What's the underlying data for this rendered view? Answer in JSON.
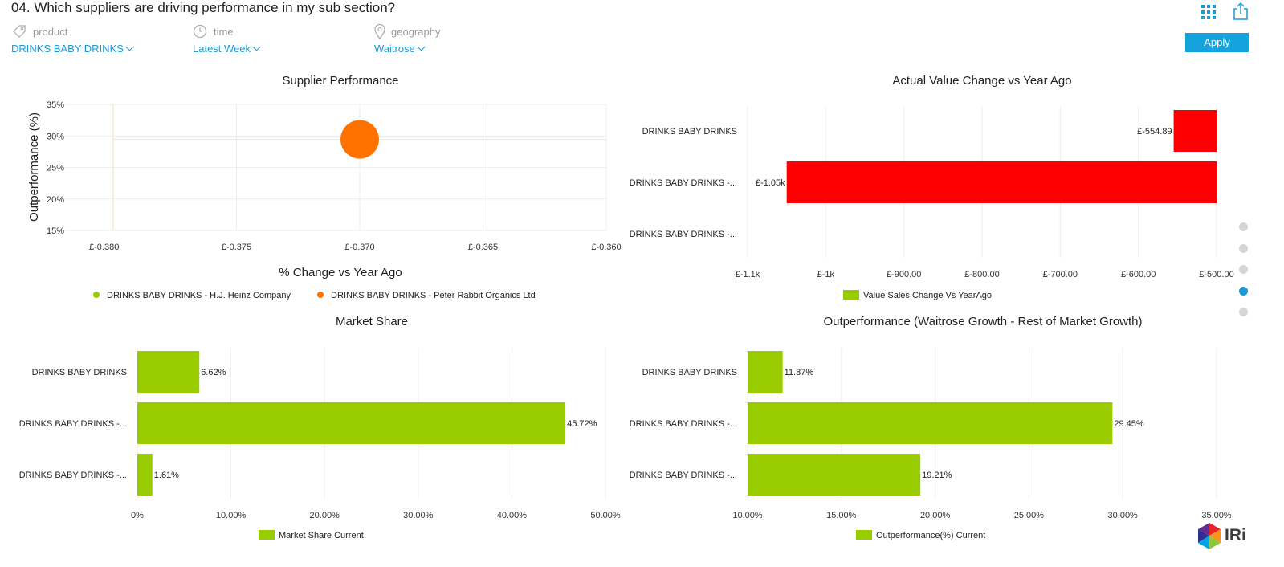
{
  "header": {
    "title": "04. Which suppliers are driving performance in my sub section?",
    "apply_label": "Apply"
  },
  "filters": {
    "product": {
      "label": "product",
      "value": "DRINKS BABY DRINKS",
      "icon": "tag-icon"
    },
    "time": {
      "label": "time",
      "value": "Latest Week",
      "icon": "clock-icon"
    },
    "geography": {
      "label": "geography",
      "value": "Waitrose",
      "icon": "map-pin-icon"
    }
  },
  "logo_text": "IRi",
  "colors": {
    "accent": "#1a9bd7",
    "green": "#99cc00",
    "red": "#ff0000",
    "orange": "#ff7200"
  },
  "nav_dots": {
    "count": 5,
    "active_index": 3
  },
  "chart_data": [
    {
      "type": "scatter",
      "title": "Supplier Performance",
      "xlabel": "% Change vs Year Ago",
      "ylabel": "Outperformance (%)",
      "xlim": [
        -0.38,
        -0.36
      ],
      "ylim": [
        15,
        35
      ],
      "xticks": [
        "£-0.380",
        "£-0.375",
        "£-0.370",
        "£-0.365",
        "£-0.360"
      ],
      "yticks": [
        "15%",
        "20%",
        "25%",
        "30%",
        "35%"
      ],
      "series": [
        {
          "name": "DRINKS BABY DRINKS - H.J. Heinz Company",
          "color": "#99cc00",
          "points": []
        },
        {
          "name": "DRINKS BABY DRINKS - Peter Rabbit Organics Ltd",
          "color": "#ff7200",
          "points": [
            {
              "x": -0.37,
              "y": 29.45
            }
          ]
        }
      ]
    },
    {
      "type": "bar",
      "orientation": "horizontal",
      "title": "Actual Value Change vs Year Ago",
      "categories": [
        "DRINKS BABY DRINKS",
        "DRINKS BABY DRINKS -...",
        "DRINKS BABY DRINKS -..."
      ],
      "values": [
        -554.89,
        -1050,
        null
      ],
      "value_labels": [
        "£-554.89",
        "£-1.05k",
        ""
      ],
      "xlim": [
        -1100,
        -500
      ],
      "xticks": [
        "£-1.1k",
        "£-1k",
        "£-900.00",
        "£-800.00",
        "£-700.00",
        "£-600.00",
        "£-500.00"
      ],
      "legend": "Value Sales Change Vs YearAgo",
      "color": "#ff0000",
      "legend_color": "#99cc00"
    },
    {
      "type": "bar",
      "orientation": "horizontal",
      "title": "Market Share",
      "categories": [
        "DRINKS BABY DRINKS",
        "DRINKS BABY DRINKS -...",
        "DRINKS BABY DRINKS -..."
      ],
      "values": [
        6.62,
        45.72,
        1.61
      ],
      "value_labels": [
        "6.62%",
        "45.72%",
        "1.61%"
      ],
      "xlim": [
        0,
        50
      ],
      "xticks": [
        "0%",
        "10.00%",
        "20.00%",
        "30.00%",
        "40.00%",
        "50.00%"
      ],
      "legend": "Market Share Current",
      "color": "#99cc00"
    },
    {
      "type": "bar",
      "orientation": "horizontal",
      "title": "Outperformance (Waitrose Growth - Rest of Market Growth)",
      "categories": [
        "DRINKS BABY DRINKS",
        "DRINKS BABY DRINKS -...",
        "DRINKS BABY DRINKS -..."
      ],
      "values": [
        11.87,
        29.45,
        19.21
      ],
      "value_labels": [
        "11.87%",
        "29.45%",
        "19.21%"
      ],
      "xlim": [
        10,
        35
      ],
      "xticks": [
        "10.00%",
        "15.00%",
        "20.00%",
        "25.00%",
        "30.00%",
        "35.00%"
      ],
      "legend": "Outperformance(%) Current",
      "color": "#99cc00"
    }
  ]
}
